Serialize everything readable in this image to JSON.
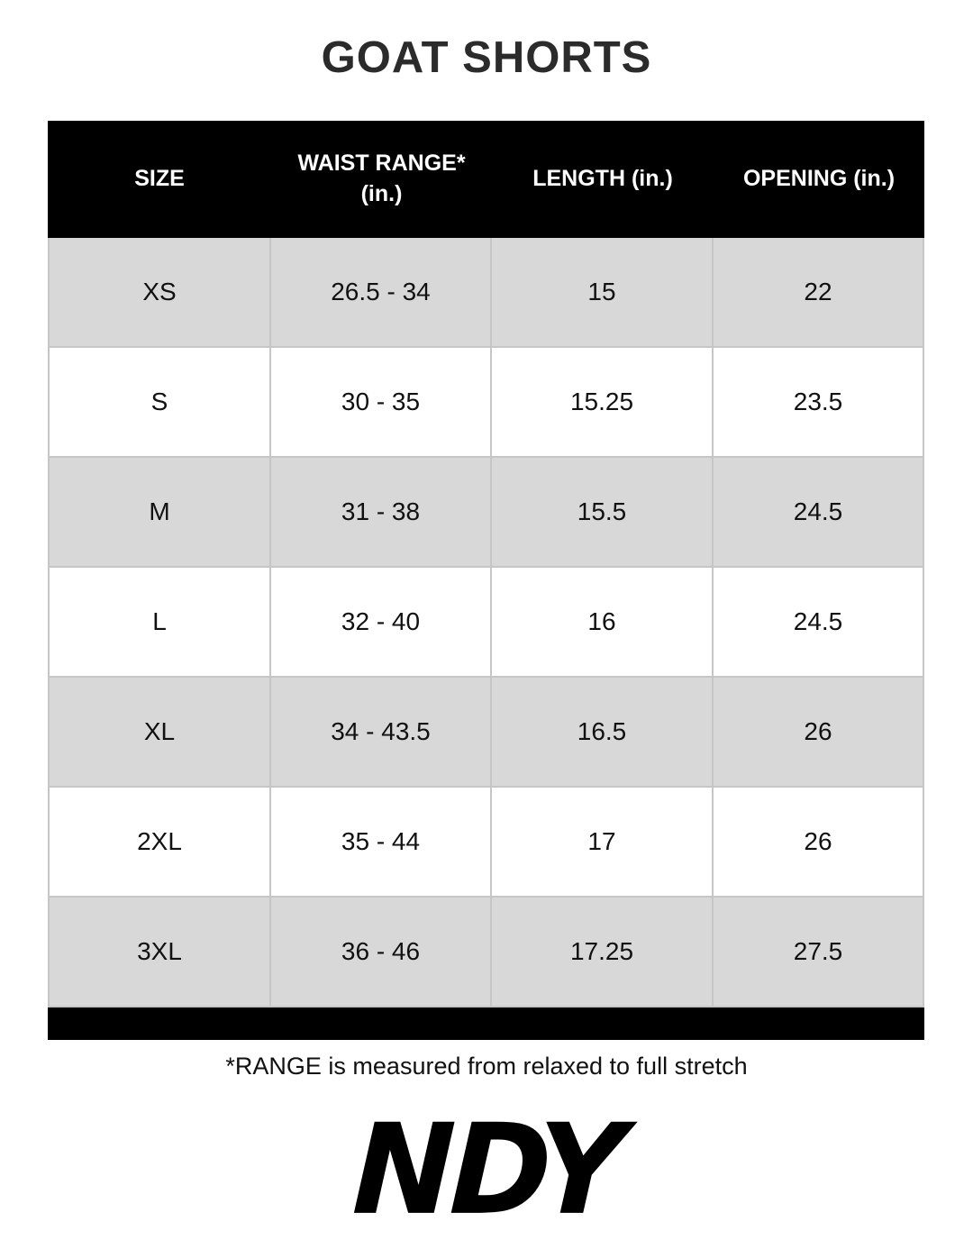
{
  "page": {
    "title": "GOAT SHORTS",
    "footnote": "*RANGE is measured from relaxed to full stretch",
    "logo_text": "NDY"
  },
  "colors": {
    "header_bg": "#000000",
    "header_text": "#ffffff",
    "row_alt_bg": "#d8d8d8",
    "row_bg": "#ffffff",
    "border": "#c6c6c6",
    "title_text": "#2b2b2b",
    "footer_bar_bg": "#000000"
  },
  "chart_data": {
    "type": "table",
    "title": "GOAT SHORTS",
    "columns": [
      "SIZE",
      "WAIST RANGE* (in.)",
      "LENGTH (in.)",
      "OPENING (in.)"
    ],
    "rows": [
      [
        "XS",
        "26.5 - 34",
        "15",
        "22"
      ],
      [
        "S",
        "30 - 35",
        "15.25",
        "23.5"
      ],
      [
        "M",
        "31 - 38",
        "15.5",
        "24.5"
      ],
      [
        "L",
        "32 - 40",
        "16",
        "24.5"
      ],
      [
        "XL",
        "34 - 43.5",
        "16.5",
        "26"
      ],
      [
        "2XL",
        "35 - 44",
        "17",
        "26"
      ],
      [
        "3XL",
        "36 - 46",
        "17.25",
        "27.5"
      ]
    ],
    "footnote": "*RANGE is measured from relaxed to full stretch",
    "layout_hints": {
      "header_style": "black band with white bold text",
      "row_striping": "alternating gray/white starting with gray",
      "footer": "black band below last row",
      "units": "inches"
    }
  }
}
